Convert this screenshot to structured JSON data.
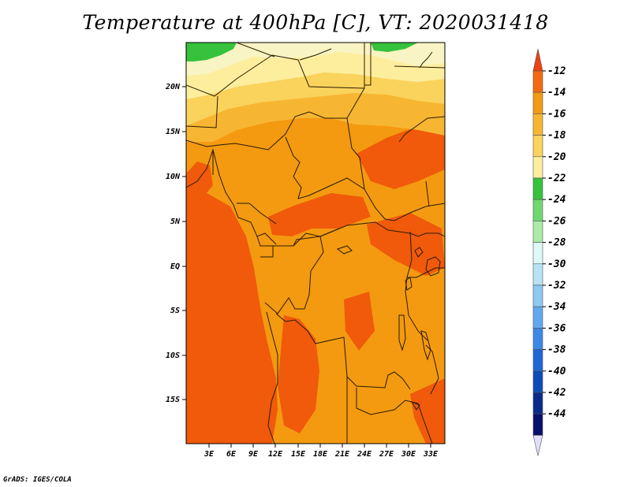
{
  "title": "Temperature at 400hPa [C], VT: 2020031418",
  "credit": "GrADS: IGES/COLA",
  "map": {
    "lat_labels": [
      "20N",
      "15N",
      "10N",
      "5N",
      "EQ",
      "5S",
      "10S",
      "15S"
    ],
    "lon_labels": [
      "3E",
      "6E",
      "9E",
      "12E",
      "15E",
      "18E",
      "21E",
      "24E",
      "27E",
      "30E",
      "33E"
    ],
    "colors": {
      "c_12": "#f05a0a",
      "c_14": "#f39a10",
      "c_16": "#f7b632",
      "c_18": "#fad35c",
      "c_20": "#fdee9e",
      "c_22": "#f9f4c3",
      "c_24": "#36c23c",
      "border": "#2a1a00"
    }
  },
  "colorbar": {
    "labels": [
      "-12",
      "-14",
      "-16",
      "-18",
      "-20",
      "-22",
      "-24",
      "-26",
      "-28",
      "-30",
      "-32",
      "-34",
      "-36",
      "-38",
      "-40",
      "-42",
      "-44"
    ],
    "colors": [
      "#ee4010",
      "#f46a10",
      "#f39a10",
      "#f7b632",
      "#fad35c",
      "#fdee9e",
      "#36c23c",
      "#6fd870",
      "#aaeba8",
      "#dcf8f8",
      "#b8e2f6",
      "#8ec8f4",
      "#62a8ee",
      "#3c88e6",
      "#1e66d6",
      "#0f4ab8",
      "#0a2a8a",
      "#08106a",
      "#e0e0f8"
    ]
  }
}
